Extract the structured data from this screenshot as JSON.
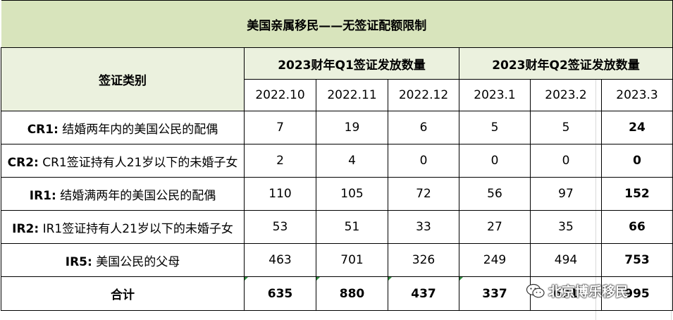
{
  "title": "美国亲属移民——无签证配额限制",
  "header": {
    "category_label": "签证类别",
    "q1_label": "2023财年Q1签证发放数量",
    "q2_label": "2023财年Q2签证发放数量",
    "months": [
      "2022.10",
      "2022.11",
      "2022.12",
      "2023.1",
      "2023.2",
      "2023.3"
    ]
  },
  "rows": [
    {
      "code": "CR1:",
      "desc": "结婚两年内的美国公民的配偶",
      "values": [
        "7",
        "19",
        "6",
        "5",
        "5",
        "24"
      ]
    },
    {
      "code": "CR2:",
      "desc": "CR1签证持有人21岁以下的未婚子女",
      "values": [
        "2",
        "4",
        "0",
        "0",
        "0",
        "0"
      ]
    },
    {
      "code": "IR1:",
      "desc": "结婚满两年的美国公民的配偶",
      "values": [
        "110",
        "105",
        "72",
        "56",
        "97",
        "152"
      ]
    },
    {
      "code": "IR2:",
      "desc": "IR1签证持有人21岁以下的未婚子女",
      "values": [
        "53",
        "51",
        "33",
        "27",
        "35",
        "66"
      ]
    },
    {
      "code": "IR5:",
      "desc": "美国公民的父母",
      "values": [
        "463",
        "701",
        "326",
        "249",
        "494",
        "753"
      ]
    }
  ],
  "total": {
    "label": "合计",
    "values": [
      "635",
      "880",
      "437",
      "337",
      "631",
      "995"
    ]
  },
  "watermark": "北京博乐移民"
}
